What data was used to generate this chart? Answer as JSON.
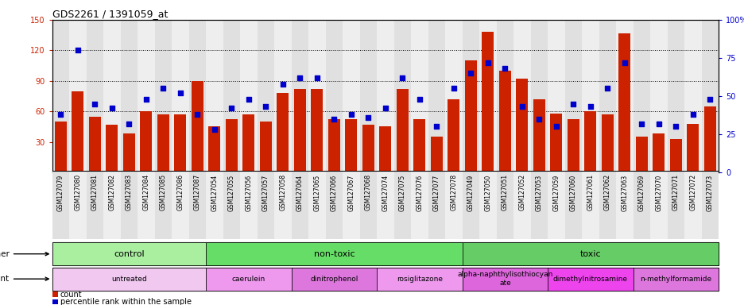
{
  "title": "GDS2261 / 1391059_at",
  "samples": [
    "GSM127079",
    "GSM127080",
    "GSM127081",
    "GSM127082",
    "GSM127083",
    "GSM127084",
    "GSM127085",
    "GSM127086",
    "GSM127087",
    "GSM127054",
    "GSM127055",
    "GSM127056",
    "GSM127057",
    "GSM127058",
    "GSM127064",
    "GSM127065",
    "GSM127066",
    "GSM127067",
    "GSM127068",
    "GSM127074",
    "GSM127075",
    "GSM127076",
    "GSM127077",
    "GSM127078",
    "GSM127049",
    "GSM127050",
    "GSM127051",
    "GSM127052",
    "GSM127053",
    "GSM127059",
    "GSM127060",
    "GSM127061",
    "GSM127062",
    "GSM127063",
    "GSM127069",
    "GSM127070",
    "GSM127071",
    "GSM127072",
    "GSM127073"
  ],
  "counts": [
    50,
    80,
    55,
    47,
    38,
    60,
    57,
    57,
    90,
    45,
    52,
    57,
    50,
    78,
    82,
    82,
    52,
    52,
    47,
    45,
    82,
    52,
    35,
    72,
    110,
    138,
    100,
    92,
    72,
    58,
    52,
    60,
    57,
    137,
    35,
    38,
    33,
    48,
    65
  ],
  "percentiles": [
    38,
    80,
    45,
    42,
    32,
    48,
    55,
    52,
    38,
    28,
    42,
    48,
    43,
    58,
    62,
    62,
    35,
    38,
    36,
    42,
    62,
    48,
    30,
    55,
    65,
    72,
    68,
    43,
    35,
    30,
    45,
    43,
    55,
    72,
    32,
    32,
    30,
    38,
    48
  ],
  "ylim_left": [
    0,
    150
  ],
  "ylim_right": [
    0,
    100
  ],
  "yticks_left": [
    30,
    60,
    90,
    120,
    150
  ],
  "yticks_right": [
    0,
    25,
    50,
    75,
    100
  ],
  "bar_color": "#cc2200",
  "dot_color": "#0000cc",
  "groups_other": [
    {
      "label": "control",
      "start": 0,
      "end": 9,
      "color": "#aaeea0"
    },
    {
      "label": "non-toxic",
      "start": 9,
      "end": 24,
      "color": "#66dd66"
    },
    {
      "label": "toxic",
      "start": 24,
      "end": 39,
      "color": "#66cc66"
    }
  ],
  "groups_agent": [
    {
      "label": "untreated",
      "start": 0,
      "end": 9,
      "color": "#f0c8f0"
    },
    {
      "label": "caerulein",
      "start": 9,
      "end": 14,
      "color": "#ee99ee"
    },
    {
      "label": "dinitrophenol",
      "start": 14,
      "end": 19,
      "color": "#dd77dd"
    },
    {
      "label": "rosiglitazone",
      "start": 19,
      "end": 24,
      "color": "#ee99ee"
    },
    {
      "label": "alpha-naphthylisothiocyan\nate",
      "start": 24,
      "end": 29,
      "color": "#dd66dd"
    },
    {
      "label": "dimethylnitrosamine",
      "start": 29,
      "end": 34,
      "color": "#ee44ee"
    },
    {
      "label": "n-methylformamide",
      "start": 34,
      "end": 39,
      "color": "#dd77dd"
    }
  ]
}
